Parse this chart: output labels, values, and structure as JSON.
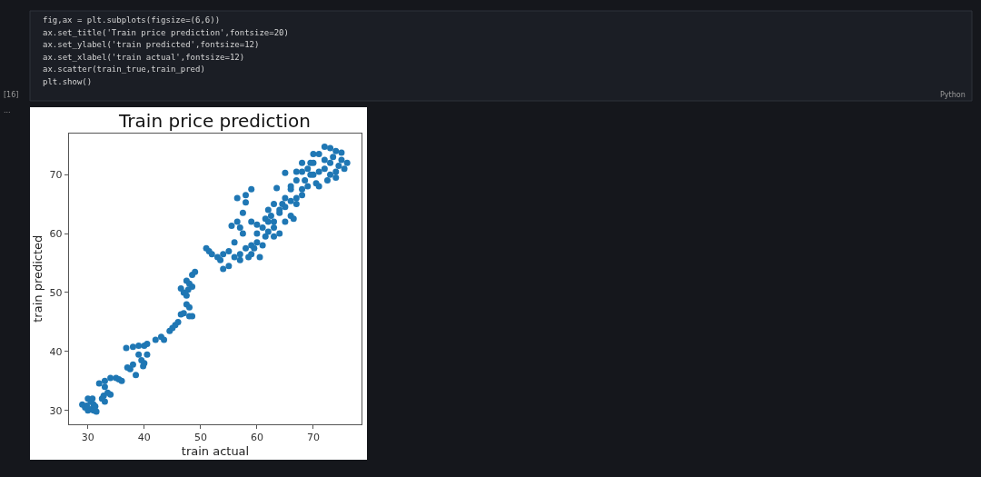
{
  "chart_data": {
    "type": "scatter",
    "title": "Train price prediction",
    "xlabel": "train actual",
    "ylabel": "train predicted",
    "annotations": [
      "fig,ax = plt.subplots(figsize=(6,6))",
      "ax.set_title('Train price prediction',fontsize=20)",
      "ax.set_ylabel('train predicted',fontsize=12)",
      "ax.set_xlabel('train actual',fontsize=12)",
      "ax.scatter(train_true,train_pred)",
      "plt.show()",
      "[16]",
      "Python",
      "..."
    ],
    "xlim": [
      26.6,
      78.6
    ],
    "ylim": [
      27.7,
      77.0
    ],
    "xticks": [
      30,
      40,
      50,
      60,
      70
    ],
    "yticks": [
      30,
      40,
      50,
      60,
      70
    ],
    "series": [
      {
        "color": "#1f77b4",
        "x": [
          29,
          29.5,
          30,
          30.5,
          31,
          31.5,
          30,
          30.5,
          31,
          30.8,
          29.8,
          31.3,
          32,
          33,
          33,
          33.5,
          32.5,
          33,
          32.8,
          34,
          34,
          35,
          36,
          35.5,
          37,
          37.5,
          36.8,
          38,
          38,
          38.5,
          39,
          39.5,
          39,
          40,
          40.5,
          40,
          39.8,
          40.5,
          42,
          43,
          43.5,
          44.5,
          45,
          45.5,
          46,
          46.5,
          47,
          48,
          48.5,
          47.5,
          48,
          46.5,
          47,
          47.5,
          48,
          48.5,
          47.5,
          48.5,
          49,
          47.8,
          51,
          51.5,
          52,
          53,
          54,
          55,
          54,
          55,
          53.5,
          56,
          57,
          58,
          56,
          55.5,
          56.5,
          57,
          57.5,
          56.5,
          58,
          58,
          59,
          57.5,
          59,
          58.5,
          59.5,
          60,
          61,
          60,
          61,
          61.5,
          62,
          62,
          63,
          63,
          64,
          63,
          64.5,
          65,
          64,
          65,
          66,
          66,
          67,
          66.5,
          65,
          63.5,
          66,
          67,
          67,
          68,
          68,
          68.5,
          68,
          69,
          69,
          69.5,
          70,
          70,
          71,
          71,
          72,
          73,
          74,
          75,
          73,
          72,
          71,
          72.5,
          73,
          74,
          74.5,
          75,
          75.5,
          76,
          74,
          70,
          72,
          73.5,
          70.5,
          69.5,
          68,
          67,
          62.5,
          61.5,
          60.5,
          59,
          57,
          60,
          59,
          62,
          64,
          65,
          66,
          63
        ],
        "values": [
          31,
          30.5,
          30,
          30.2,
          30,
          29.8,
          32,
          31.5,
          31,
          32,
          30.8,
          30.7,
          34.6,
          35,
          34,
          33,
          32,
          31.5,
          32.5,
          32.7,
          35.5,
          35.5,
          35,
          35.3,
          37.3,
          37,
          40.6,
          40.8,
          37.8,
          36,
          39.5,
          38.5,
          41,
          41,
          39.5,
          38,
          37.5,
          41.3,
          42,
          42.5,
          42,
          43.5,
          44,
          44.5,
          45,
          46.3,
          46.5,
          46,
          46,
          48,
          47.5,
          50.7,
          50,
          49.5,
          51.5,
          51,
          52,
          53,
          53.5,
          50.5,
          57.5,
          57,
          56.5,
          56,
          56.5,
          57,
          54,
          54.5,
          55.5,
          56,
          56.5,
          57.5,
          58.5,
          61.3,
          62,
          61,
          63.5,
          66,
          66.5,
          65.3,
          67.5,
          60,
          58,
          56,
          57.5,
          58.5,
          58,
          60,
          61,
          62.5,
          64,
          60.3,
          62,
          61,
          63.5,
          65,
          65,
          64.5,
          60,
          62,
          63,
          65.5,
          66,
          62.5,
          70.3,
          67.7,
          68,
          69,
          65,
          66.5,
          67.5,
          69,
          70.5,
          71,
          68,
          72,
          70,
          73.5,
          70.5,
          73.5,
          74.7,
          74.5,
          74,
          73.7,
          72,
          71,
          68,
          69,
          70,
          70.5,
          71.5,
          72.5,
          71,
          72,
          69.5,
          72,
          72.5,
          73,
          68.5,
          70,
          72,
          70.5,
          63,
          59.5,
          56,
          56.5,
          55.5,
          61.5,
          62,
          62,
          64,
          66,
          67.5,
          59.5
        ]
      }
    ]
  }
}
